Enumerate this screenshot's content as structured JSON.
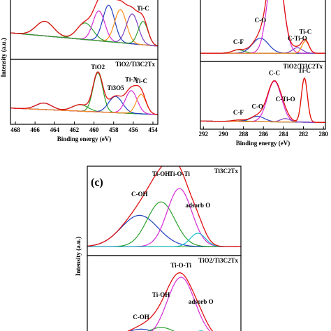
{
  "chart_data": [
    {
      "type": "line",
      "xlabel": "Binding energy (eV)",
      "ylabel": "Intensity (a.u.)",
      "xlim": [
        468.5,
        453.5
      ],
      "xticks": [
        468,
        466,
        464,
        462,
        460,
        458,
        456,
        454
      ],
      "subplots": [
        {
          "ylim": [
            0,
            100
          ],
          "background": [
            40,
            20
          ],
          "components": [
            {
              "center": 465.0,
              "width": 0.9,
              "height": 22,
              "color": "#2ca02c"
            },
            {
              "center": 460.9,
              "width": 0.8,
              "height": 25,
              "color": "#2ca02c"
            },
            {
              "center": 459.5,
              "width": 0.6,
              "height": 45,
              "color": "#d62ad6"
            },
            {
              "center": 458.5,
              "width": 0.6,
              "height": 55,
              "color": "#1f3fbf"
            },
            {
              "center": 457.3,
              "width": 0.6,
              "height": 50,
              "color": "#ff8c1a"
            },
            {
              "center": 456.1,
              "width": 0.6,
              "height": 45,
              "color": "#7b3fbf"
            },
            {
              "label": "Ti-C",
              "center": 455.0,
              "width": 0.5,
              "height": 35,
              "color": "#2ca02c"
            }
          ]
        },
        {
          "sample": "TiO2/Ti3C2Tx",
          "ylim": [
            0,
            100
          ],
          "background": [
            25,
            15
          ],
          "components": [
            {
              "center": 465.1,
              "width": 0.8,
              "height": 10,
              "color": "#1f3fbf"
            },
            {
              "center": 461.4,
              "width": 0.8,
              "height": 10,
              "color": "#2ca02c"
            },
            {
              "label": "TiO2",
              "center": 459.6,
              "width": 0.5,
              "height": 60,
              "color": "#2ca02c"
            },
            {
              "label": "Ti3O5",
              "center": 457.8,
              "width": 0.7,
              "height": 25,
              "color": "#1f3fbf"
            },
            {
              "label": "Ti-X",
              "center": 456.2,
              "width": 0.6,
              "height": 35,
              "color": "#d62ad6"
            },
            {
              "label": "Ti-C",
              "center": 455.2,
              "width": 0.5,
              "height": 30,
              "color": "#ff8c1a"
            }
          ]
        }
      ]
    },
    {
      "type": "line",
      "xlabel": "Binding energy (eV)",
      "xlim": [
        292.3,
        279.8
      ],
      "xticks": [
        292,
        290,
        288,
        286,
        284,
        282,
        280
      ],
      "subplots": [
        {
          "ylim": [
            0,
            100
          ],
          "background": [
            12,
            12
          ],
          "components": [
            {
              "label": "C-F",
              "center": 288.5,
              "width": 0.6,
              "height": 5,
              "color": "#2ca02c"
            },
            {
              "label": "C-O",
              "center": 286.3,
              "width": 0.8,
              "height": 22,
              "color": "#1f3fbf"
            },
            {
              "center": 284.8,
              "width": 0.7,
              "height": 150,
              "color": "#d62ad6"
            },
            {
              "label": "C-Ti-O",
              "center": 282.6,
              "width": 0.5,
              "height": 8,
              "color": "#7b3fbf"
            },
            {
              "label": "Ti-C",
              "center": 281.8,
              "width": 0.35,
              "height": 18,
              "color": "#ff8c1a"
            }
          ]
        },
        {
          "sample": "TiO2/Ti3C2Tx",
          "ylim": [
            0,
            100
          ],
          "background": [
            12,
            10
          ],
          "components": [
            {
              "label": "C-F",
              "center": 288.5,
              "width": 0.6,
              "height": 2,
              "color": "#2ca02c"
            },
            {
              "label": "C-O",
              "center": 286.6,
              "width": 0.7,
              "height": 8,
              "color": "#1f3fbf"
            },
            {
              "label": "C-C",
              "center": 284.9,
              "width": 0.7,
              "height": 60,
              "color": "#d62ad6"
            },
            {
              "label": "C-Ti-O",
              "center": 283.8,
              "width": 0.5,
              "height": 5,
              "color": "#7b3fbf"
            },
            {
              "label": "Ti-C",
              "center": 281.9,
              "width": 0.3,
              "height": 65,
              "color": "#ff8c1a"
            }
          ]
        }
      ]
    },
    {
      "type": "line",
      "panel": "(c)",
      "ylabel": "Intensity (a.u.)",
      "xlim": [
        536,
        526
      ],
      "subplots": [
        {
          "sample": "Ti3C2Tx",
          "ylim": [
            0,
            100
          ],
          "background": [
            10,
            10
          ],
          "components": [
            {
              "label": "C-OH",
              "center": 532.6,
              "width": 1.2,
              "height": 35,
              "color": "#1f3fbf"
            },
            {
              "label": "Ti-OH",
              "center": 531.2,
              "width": 0.9,
              "height": 50,
              "color": "#2ca02c"
            },
            {
              "label": "Ti-O-Ti",
              "center": 530.0,
              "width": 0.8,
              "height": 65,
              "color": "#d62ad6"
            },
            {
              "label": "adsorb O",
              "center": 528.8,
              "width": 0.5,
              "height": 15,
              "color": "#17becf"
            }
          ]
        },
        {
          "sample": "TiO2/Ti3C2Tx",
          "ylim": [
            0,
            100
          ],
          "background": [
            5,
            5
          ],
          "components": [
            {
              "label": "C-OH",
              "center": 532.5,
              "width": 1.0,
              "height": 10,
              "color": "#1f3fbf"
            },
            {
              "label": "Ti-OH",
              "center": 531.2,
              "width": 0.9,
              "height": 12,
              "color": "#2ca02c"
            },
            {
              "label": "Ti-O-Ti",
              "center": 529.9,
              "width": 0.9,
              "height": 70,
              "color": "#d62ad6"
            },
            {
              "label": "adsorb O",
              "center": 528.6,
              "width": 0.5,
              "height": 8,
              "color": "#17becf"
            }
          ]
        }
      ]
    }
  ]
}
